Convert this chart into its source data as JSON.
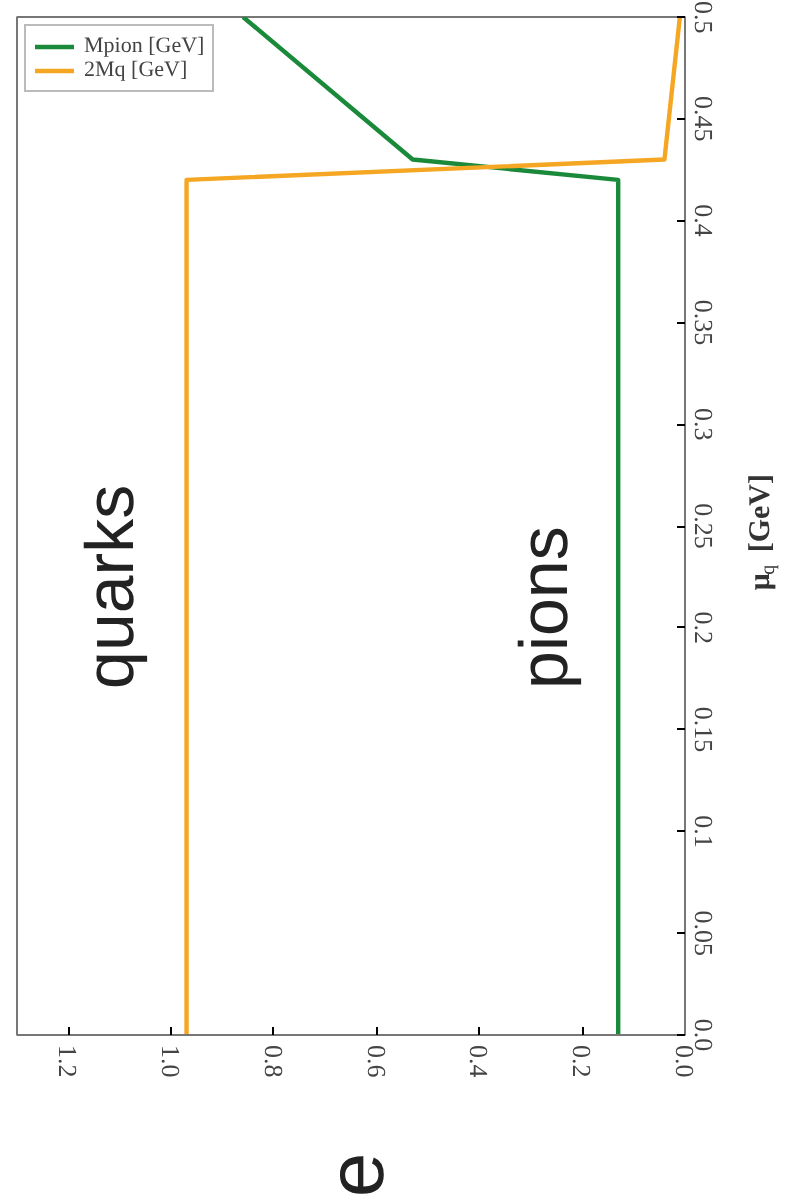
{
  "chart_data": {
    "type": "line",
    "ylabel": "μ$_{q}$ [GeV]",
    "series": [
      {
        "name": "Mpion [GeV]",
        "color": "#1a8a3a",
        "x": [
          0.13,
          0.13,
          0.53,
          0.86
        ],
        "values": [
          0,
          0.42,
          0.43,
          0.5
        ]
      },
      {
        "name": "2Mq [GeV]",
        "color": "#f5a623",
        "x": [
          0.97,
          0.97,
          0.04,
          0.01
        ],
        "values": [
          0,
          0.42,
          0.43,
          0.5
        ]
      }
    ],
    "xlim": [
      1.3,
      0
    ],
    "ylim": [
      0,
      0.5
    ],
    "xticks": [
      {
        "value": 0,
        "label": "0.0"
      },
      0.2,
      0.4,
      0.6,
      0.8,
      {
        "value": 1,
        "label": "1.0"
      },
      1.2
    ],
    "yticks": [
      {
        "value": 0,
        "label": "0.0"
      },
      0.05,
      0.1,
      0.15,
      0.2,
      0.25,
      0.3,
      0.35,
      0.4,
      0.45,
      0.5
    ],
    "annotations": [
      "quarks",
      "pions",
      "e"
    ],
    "grid": false,
    "legend": "top left",
    "line_style": "solid"
  }
}
